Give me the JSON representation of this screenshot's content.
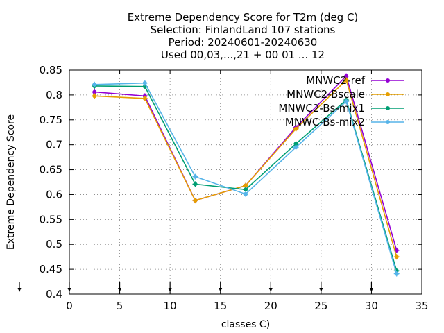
{
  "chart_data": {
    "type": "line",
    "title_lines": [
      "Extreme Dependency Score  for T2m (deg C)",
      "Selection: FinlandLand    107 stations",
      "Period: 20240601-20240630",
      "Used 00,03,...,21 + 00 01 ... 12"
    ],
    "xlabel": "classes C)",
    "ylabel": "Extreme Dependency Score",
    "xlim": [
      0,
      35
    ],
    "ylim": [
      0.4,
      0.85
    ],
    "x_ticks": [
      0,
      5,
      10,
      15,
      20,
      25,
      30,
      35
    ],
    "y_ticks": [
      0.4,
      0.45,
      0.5,
      0.55,
      0.6,
      0.65,
      0.7,
      0.75,
      0.8,
      0.85
    ],
    "x_tick_labels": [
      "0",
      "5",
      "10",
      "15",
      "20",
      "25",
      "30",
      "35"
    ],
    "y_tick_labels": [
      "0.4",
      "0.45",
      "0.5",
      "0.55",
      "0.6",
      "0.65",
      "0.7",
      "0.75",
      "0.8",
      "0.85"
    ],
    "grid": true,
    "legend_position": "top-right",
    "x": [
      2.5,
      7.5,
      12.5,
      17.5,
      22.5,
      27.5,
      32.5
    ],
    "bottom_arrow_x": [
      0,
      5,
      10,
      15,
      20,
      25,
      30
    ],
    "series": [
      {
        "name": "MNWC2-ref",
        "color": "#9400d3",
        "values": [
          0.806,
          0.798,
          0.588,
          0.618,
          0.735,
          0.838,
          0.488
        ]
      },
      {
        "name": "MNWC2-Bscale",
        "color": "#e69f00",
        "values": [
          0.798,
          0.793,
          0.588,
          0.618,
          0.732,
          0.83,
          0.475
        ]
      },
      {
        "name": "MNWC2-Bs-mix1",
        "color": "#009e73",
        "values": [
          0.818,
          0.817,
          0.621,
          0.61,
          0.702,
          0.79,
          0.447
        ]
      },
      {
        "name": "MNWC-Bs-mix2",
        "color": "#56b4e9",
        "values": [
          0.821,
          0.824,
          0.636,
          0.601,
          0.695,
          0.787,
          0.441
        ]
      }
    ]
  }
}
